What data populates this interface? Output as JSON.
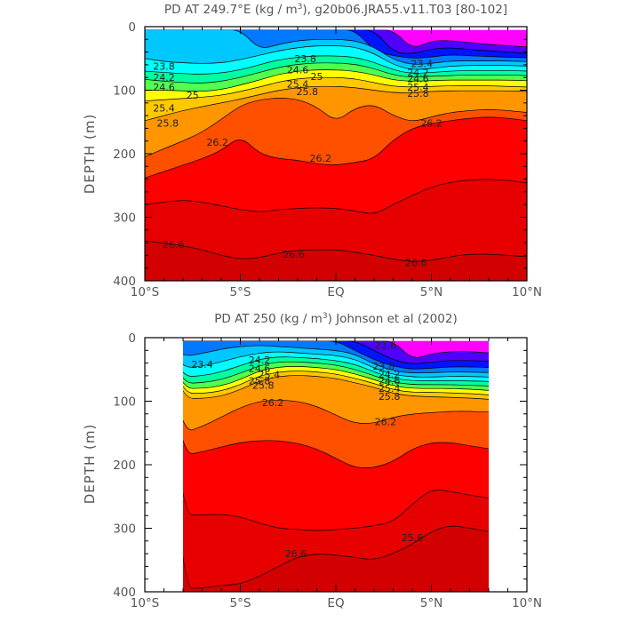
{
  "figure": {
    "panels": [
      {
        "id": "top",
        "title_main": "PD AT 249.7°E (kg / m",
        "title_sup": "3",
        "title_rest": "), g20b06.JRA55.v11.T03 [80-102]",
        "ylabel": "DEPTH (m)"
      },
      {
        "id": "bottom",
        "title_main": "PD AT 250 (kg / m",
        "title_sup": "3",
        "title_rest": ") Johnson et al (2002)",
        "ylabel": "DEPTH (m)"
      }
    ]
  },
  "chart_data": [
    {
      "type": "contour",
      "title": "PD AT 249.7°E (kg / m3), g20b06.JRA55.v11.T03 [80-102]",
      "xlabel": "",
      "ylabel": "DEPTH (m)",
      "xlim": [
        -10,
        10
      ],
      "ylim": [
        400,
        0
      ],
      "x_ticks": [
        -10,
        -5,
        0,
        5,
        10
      ],
      "x_tick_labels": [
        "10°S",
        "5°S",
        "EQ",
        "5°N",
        "10°N"
      ],
      "y_ticks": [
        0,
        100,
        200,
        300,
        400
      ],
      "y_tick_labels": [
        "0",
        "100",
        "200",
        "300",
        "400"
      ],
      "data_x_range": [
        -10,
        10
      ],
      "data_top_depth": 5,
      "fill_colors": [
        "#ff00ff",
        "#aa00ff",
        "#5000ff",
        "#0014ff",
        "#0078ff",
        "#00c8ff",
        "#00ffff",
        "#00ffa0",
        "#50ff50",
        "#ffff00",
        "#ffc800",
        "#ff9600",
        "#ff5000",
        "#ff0000",
        "#e60000",
        "#d20000"
      ],
      "contours": [
        {
          "level": 22.2,
          "depths": [
            null,
            null,
            null,
            null,
            null,
            null,
            null,
            null,
            null,
            null,
            null,
            null,
            null,
            null,
            36,
            22,
            22,
            25,
            28,
            30,
            32
          ]
        },
        {
          "level": 22.6,
          "depths": [
            null,
            null,
            null,
            null,
            null,
            null,
            null,
            null,
            null,
            null,
            null,
            null,
            null,
            40,
            43,
            35,
            33,
            36,
            38,
            40,
            42
          ]
        },
        {
          "level": 23.0,
          "depths": [
            null,
            null,
            null,
            null,
            null,
            null,
            null,
            null,
            null,
            null,
            null,
            null,
            38,
            46,
            50,
            48,
            44,
            46,
            47,
            48,
            49
          ]
        },
        {
          "level": 23.4,
          "depths": [
            null,
            null,
            null,
            null,
            null,
            null,
            36,
            28,
            22,
            20,
            20,
            22,
            32,
            52,
            60,
            58,
            54,
            54,
            54,
            54,
            55
          ]
        },
        {
          "level": 23.8,
          "depths": [
            50,
            55,
            57,
            58,
            57,
            52,
            45,
            38,
            33,
            30,
            30,
            32,
            42,
            60,
            68,
            66,
            62,
            61,
            61,
            61,
            62
          ]
        },
        {
          "level": 24.2,
          "depths": [
            70,
            72,
            74,
            75,
            73,
            68,
            60,
            52,
            48,
            46,
            46,
            48,
            56,
            68,
            74,
            72,
            70,
            69,
            69,
            69,
            70
          ]
        },
        {
          "level": 24.6,
          "depths": [
            83,
            86,
            88,
            89,
            86,
            80,
            72,
            64,
            59,
            57,
            57,
            59,
            66,
            76,
            80,
            78,
            77,
            76,
            76,
            76,
            77
          ]
        },
        {
          "level": 25.0,
          "depths": [
            100,
            100,
            101,
            102,
            99,
            92,
            84,
            75,
            70,
            68,
            68,
            70,
            76,
            84,
            86,
            85,
            84,
            84,
            84,
            84,
            85
          ]
        },
        {
          "level": 25.4,
          "depths": [
            117,
            115,
            113,
            111,
            108,
            102,
            95,
            87,
            82,
            80,
            80,
            82,
            88,
            94,
            95,
            94,
            93,
            93,
            93,
            94,
            95
          ]
        },
        {
          "level": 25.8,
          "depths": [
            148,
            140,
            132,
            126,
            120,
            114,
            107,
            100,
            96,
            94,
            94,
            96,
            100,
            104,
            104,
            102,
            101,
            101,
            101,
            101,
            102
          ]
        },
        {
          "level": 26.2,
          "depths": [
            205,
            192,
            180,
            166,
            146,
            124,
            115,
            112,
            114,
            126,
            150,
            128,
            122,
            140,
            150,
            142,
            135,
            132,
            130,
            132,
            135
          ]
        },
        {
          "level": 26.3,
          "depths": [
            238,
            228,
            218,
            208,
            195,
            172,
            200,
            208,
            210,
            216,
            218,
            214,
            208,
            178,
            160,
            152,
            148,
            144,
            142,
            144,
            148
          ]
        },
        {
          "level": 26.4,
          "depths": [
            280,
            276,
            273,
            276,
            282,
            288,
            292,
            288,
            286,
            285,
            286,
            290,
            296,
            280,
            266,
            252,
            245,
            241,
            240,
            242,
            246
          ]
        },
        {
          "level": 26.6,
          "depths": [
            337,
            341,
            345,
            351,
            360,
            366,
            364,
            356,
            352,
            351,
            351,
            355,
            360,
            366,
            370,
            368,
            362,
            358,
            358,
            360,
            362
          ]
        }
      ],
      "contour_labels": [
        {
          "text": "23.8",
          "x": -9.0,
          "depth": 62
        },
        {
          "text": "24.2",
          "x": -9.0,
          "depth": 80
        },
        {
          "text": "24.6",
          "x": -9.0,
          "depth": 95
        },
        {
          "text": "25",
          "x": -7.5,
          "depth": 108
        },
        {
          "text": "25.4",
          "x": -9.0,
          "depth": 128
        },
        {
          "text": "25.8",
          "x": -8.8,
          "depth": 152
        },
        {
          "text": "26.2",
          "x": -6.2,
          "depth": 182
        },
        {
          "text": "23.8",
          "x": -1.6,
          "depth": 50
        },
        {
          "text": "24.6",
          "x": -2.0,
          "depth": 68
        },
        {
          "text": "25",
          "x": -1.0,
          "depth": 78
        },
        {
          "text": "25.4",
          "x": -2.0,
          "depth": 90
        },
        {
          "text": "25.8",
          "x": -1.5,
          "depth": 102
        },
        {
          "text": "26.2",
          "x": -0.8,
          "depth": 207
        },
        {
          "text": "23.4",
          "x": 4.5,
          "depth": 58
        },
        {
          "text": "24.2",
          "x": 4.3,
          "depth": 72
        },
        {
          "text": "24.6",
          "x": 4.3,
          "depth": 82
        },
        {
          "text": "25.4",
          "x": 4.3,
          "depth": 95
        },
        {
          "text": "25.8",
          "x": 4.3,
          "depth": 105
        },
        {
          "text": "26.2",
          "x": 5.0,
          "depth": 152
        },
        {
          "text": "26.6",
          "x": -8.5,
          "depth": 343
        },
        {
          "text": "26.6",
          "x": -2.2,
          "depth": 358
        },
        {
          "text": "26.6",
          "x": 4.2,
          "depth": 371
        }
      ]
    },
    {
      "type": "contour",
      "title": "PD AT 250 (kg / m3) Johnson et al (2002)",
      "xlabel": "",
      "ylabel": "DEPTH (m)",
      "xlim": [
        -10,
        10
      ],
      "ylim": [
        400,
        0
      ],
      "x_ticks": [
        -10,
        -5,
        0,
        5,
        10
      ],
      "x_tick_labels": [
        "10°S",
        "5°S",
        "EQ",
        "5°N",
        "10°N"
      ],
      "y_ticks": [
        0,
        100,
        200,
        300,
        400
      ],
      "y_tick_labels": [
        "0",
        "100",
        "200",
        "300",
        "400"
      ],
      "data_x_range": [
        -8,
        8
      ],
      "data_top_depth": 5,
      "fill_colors": [
        "#ff00ff",
        "#aa00ff",
        "#5000ff",
        "#0014ff",
        "#0078ff",
        "#00c8ff",
        "#00ffff",
        "#00ffa0",
        "#50ff50",
        "#ffff00",
        "#ffc800",
        "#ff9600",
        "#ff5000",
        "#ff0000",
        "#e60000",
        "#d20000"
      ],
      "contours": [
        {
          "level": 22.2,
          "depths": [
            null,
            null,
            null,
            null,
            null,
            null,
            null,
            null,
            null,
            null,
            null,
            null,
            null,
            null,
            35,
            25,
            22,
            22,
            24,
            26,
            28
          ]
        },
        {
          "level": 22.6,
          "depths": [
            null,
            null,
            null,
            null,
            null,
            null,
            null,
            null,
            null,
            null,
            null,
            null,
            20,
            35,
            42,
            38,
            36,
            36,
            37,
            38,
            40
          ]
        },
        {
          "level": 23.0,
          "depths": [
            null,
            null,
            null,
            null,
            null,
            null,
            null,
            null,
            null,
            null,
            null,
            20,
            35,
            45,
            50,
            48,
            46,
            46,
            47,
            48,
            50
          ]
        },
        {
          "level": 23.4,
          "depths": [
            null,
            null,
            30,
            25,
            18,
            14,
            12,
            14,
            16,
            18,
            20,
            26,
            42,
            52,
            56,
            55,
            54,
            54,
            55,
            56,
            58
          ]
        },
        {
          "level": 23.8,
          "depths": [
            null,
            null,
            48,
            45,
            38,
            30,
            24,
            22,
            24,
            26,
            28,
            34,
            48,
            58,
            62,
            62,
            61,
            61,
            62,
            64,
            66
          ]
        },
        {
          "level": 24.2,
          "depths": [
            null,
            null,
            62,
            60,
            54,
            44,
            34,
            30,
            31,
            33,
            36,
            42,
            54,
            64,
            68,
            68,
            68,
            68,
            69,
            71,
            73
          ]
        },
        {
          "level": 24.6,
          "depths": [
            null,
            null,
            72,
            71,
            66,
            56,
            44,
            38,
            38,
            40,
            43,
            50,
            60,
            70,
            74,
            74,
            74,
            75,
            76,
            78,
            80
          ]
        },
        {
          "level": 25.0,
          "depths": [
            null,
            null,
            80,
            80,
            76,
            66,
            52,
            46,
            45,
            47,
            50,
            57,
            66,
            76,
            80,
            80,
            80,
            81,
            83,
            85,
            87
          ]
        },
        {
          "level": 25.4,
          "depths": [
            null,
            null,
            87,
            88,
            84,
            74,
            60,
            54,
            52,
            54,
            57,
            64,
            72,
            82,
            86,
            86,
            87,
            88,
            90,
            92,
            94
          ]
        },
        {
          "level": 25.8,
          "depths": [
            null,
            null,
            95,
            96,
            92,
            82,
            68,
            61,
            59,
            61,
            64,
            71,
            78,
            88,
            92,
            93,
            94,
            95,
            97,
            99,
            101
          ]
        },
        {
          "level": 26.2,
          "depths": [
            null,
            null,
            150,
            140,
            125,
            110,
            100,
            98,
            100,
            108,
            122,
            135,
            135,
            125,
            120,
            118,
            116,
            116,
            117,
            118,
            120
          ]
        },
        {
          "level": 26.3,
          "depths": [
            null,
            null,
            185,
            180,
            172,
            165,
            162,
            162,
            166,
            175,
            190,
            205,
            205,
            195,
            175,
            165,
            165,
            170,
            175,
            178,
            180
          ]
        },
        {
          "level": 26.4,
          "depths": [
            null,
            null,
            280,
            279,
            278,
            282,
            292,
            300,
            302,
            304,
            302,
            300,
            296,
            290,
            262,
            238,
            242,
            248,
            252,
            258,
            262
          ]
        },
        {
          "level": 26.6,
          "depths": [
            null,
            null,
            395,
            394,
            390,
            388,
            376,
            360,
            345,
            340,
            342,
            346,
            350,
            340,
            325,
            305,
            295,
            300,
            305,
            310,
            315
          ]
        }
      ],
      "contour_labels": [
        {
          "text": "23.4",
          "x": -7.0,
          "depth": 42
        },
        {
          "text": "25.8",
          "x": -4.0,
          "depth": 68
        },
        {
          "text": "24.2",
          "x": -4.0,
          "depth": 35
        },
        {
          "text": "24.6",
          "x": -4.0,
          "depth": 48
        },
        {
          "text": "25.4",
          "x": -3.5,
          "depth": 58
        },
        {
          "text": "25.8",
          "x": -3.8,
          "depth": 75
        },
        {
          "text": "26.2",
          "x": -3.3,
          "depth": 102
        },
        {
          "text": "23.8",
          "x": 2.5,
          "depth": 45
        },
        {
          "text": "24.2",
          "x": 2.8,
          "depth": 57
        },
        {
          "text": "24.6",
          "x": 2.8,
          "depth": 68
        },
        {
          "text": "25.4",
          "x": 2.8,
          "depth": 80
        },
        {
          "text": "25.8",
          "x": 2.8,
          "depth": 92
        },
        {
          "text": "26.2",
          "x": 2.6,
          "depth": 132
        },
        {
          "text": "22.6",
          "x": 2.6,
          "depth": 12
        },
        {
          "text": "26.6",
          "x": -2.1,
          "depth": 340
        },
        {
          "text": "25.6",
          "x": 4.0,
          "depth": 315
        }
      ]
    }
  ]
}
